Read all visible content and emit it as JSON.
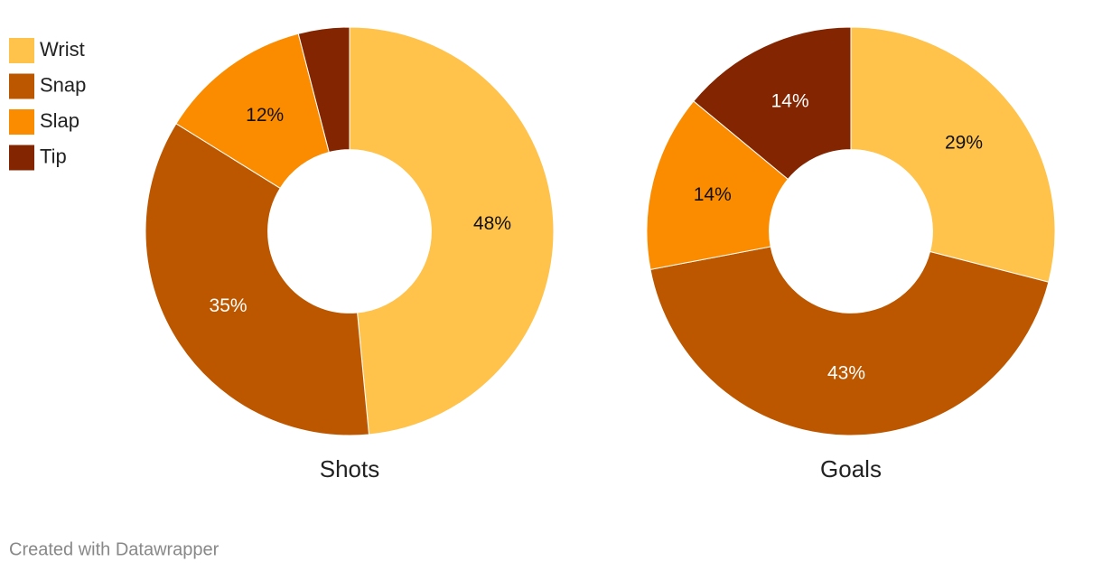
{
  "chart_data": [
    {
      "type": "pie",
      "title": "Shots",
      "categories": [
        "Wrist",
        "Snap",
        "Slap",
        "Tip"
      ],
      "values": [
        48,
        35,
        12,
        4
      ],
      "value_labels": [
        "48%",
        "35%",
        "12%",
        null
      ],
      "colors": [
        "#ffc24b",
        "#bc5700",
        "#fb8c00",
        "#822500"
      ],
      "hole": 0.4
    },
    {
      "type": "pie",
      "title": "Goals",
      "categories": [
        "Wrist",
        "Snap",
        "Slap",
        "Tip"
      ],
      "values": [
        29,
        43,
        14,
        14
      ],
      "value_labels": [
        "29%",
        "43%",
        "14%",
        "14%"
      ],
      "colors": [
        "#ffc24b",
        "#bc5700",
        "#fb8c00",
        "#822500"
      ],
      "hole": 0.4
    }
  ],
  "footer": "Created with Datawrapper"
}
